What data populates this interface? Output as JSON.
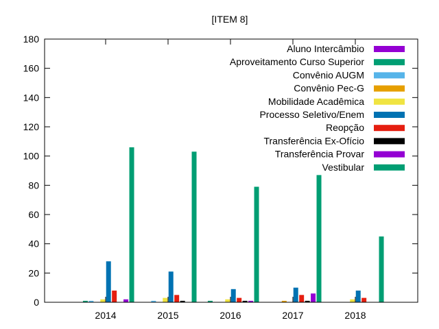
{
  "chart_data": {
    "type": "bar",
    "title": "[ITEM 8]",
    "xlabel": "",
    "ylabel": "",
    "ylim": [
      0,
      180
    ],
    "yticks": [
      "0",
      "20",
      "40",
      "60",
      "80",
      "100",
      "120",
      "140",
      "160",
      "180"
    ],
    "categories": [
      "2014",
      "2015",
      "2016",
      "2017",
      "2018"
    ],
    "legend_position": "top-right",
    "grid": false,
    "series": [
      {
        "name": "Aluno Intercâmbio",
        "color": "#9400d3",
        "values": [
          0,
          0,
          0,
          0,
          0
        ]
      },
      {
        "name": "Aproveitamento Curso Superior",
        "color": "#009e73",
        "values": [
          1,
          0,
          1,
          0,
          0
        ]
      },
      {
        "name": "Convênio AUGM",
        "color": "#56b4e9",
        "values": [
          1,
          1,
          0,
          0,
          0
        ]
      },
      {
        "name": "Convênio Pec-G",
        "color": "#e69f00",
        "values": [
          0,
          0,
          0,
          1,
          0
        ]
      },
      {
        "name": "Mobilidade Acadêmica",
        "color": "#f0e442",
        "values": [
          2,
          3,
          2,
          0,
          2
        ]
      },
      {
        "name": "Processo Seletivo/Enem",
        "color": "#0072b2",
        "values": [
          28,
          21,
          9,
          10,
          8
        ]
      },
      {
        "name": "Reopção",
        "color": "#e51e10",
        "values": [
          8,
          5,
          3,
          5,
          3
        ]
      },
      {
        "name": "Transferência Ex-Ofício",
        "color": "#000000",
        "values": [
          0,
          1,
          1,
          1,
          0
        ]
      },
      {
        "name": "Transferência Provar",
        "color": "#9400d3",
        "values": [
          2,
          0,
          1,
          6,
          0
        ]
      },
      {
        "name": "Vestibular",
        "color": "#009e73",
        "values": [
          106,
          103,
          79,
          87,
          45
        ]
      }
    ]
  }
}
